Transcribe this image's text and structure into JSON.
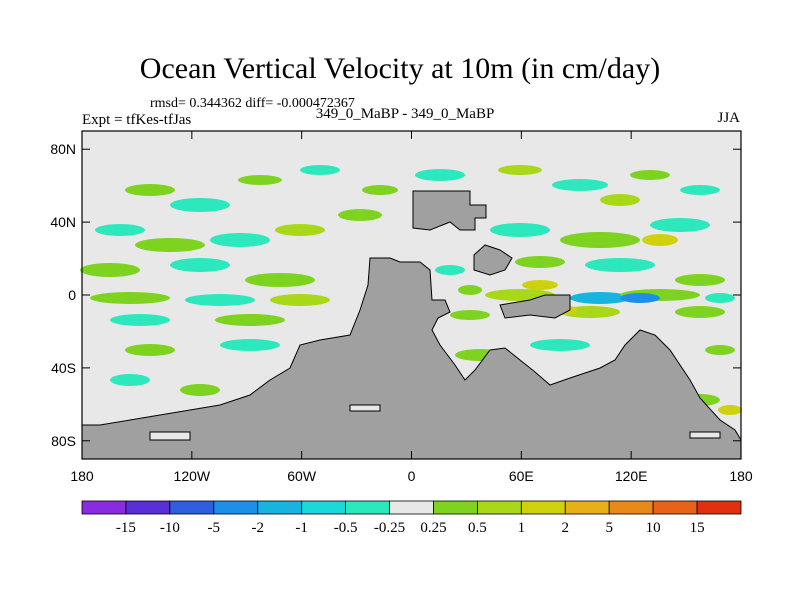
{
  "chart_data": {
    "type": "heatmap",
    "title": "Ocean Vertical Velocity at 10m (in cm/day)",
    "stats_label": "rmsd= 0.344362 diff= -0.000472367",
    "left_label": "Expt = tfKes-tfJas",
    "center_label": "349_0_MaBP - 349_0_MaBP",
    "right_label": "JJA",
    "x_ticks": [
      "180",
      "120W",
      "60W",
      "0",
      "60E",
      "120E",
      "180"
    ],
    "x_tick_values": [
      -180,
      -120,
      -60,
      0,
      60,
      120,
      180
    ],
    "y_ticks": [
      "80N",
      "40N",
      "0",
      "40S",
      "80S"
    ],
    "y_tick_values": [
      80,
      40,
      0,
      -40,
      -80
    ],
    "xlim": [
      -180,
      180
    ],
    "ylim": [
      -90,
      90
    ],
    "colorbar": {
      "levels": [
        "-15",
        "-10",
        "-5",
        "-2",
        "-1",
        "-0.5",
        "-0.25",
        "0.25",
        "0.5",
        "1",
        "2",
        "5",
        "10",
        "15"
      ],
      "colors": [
        "#8a2be2",
        "#5a2fd6",
        "#2f5fe0",
        "#1e8fe8",
        "#18b4e0",
        "#1ad8d8",
        "#2ee8bd",
        "#e8e8e8",
        "#7ed321",
        "#a8d818",
        "#cfd10c",
        "#e8b018",
        "#e88a1a",
        "#e8621a",
        "#e03010"
      ]
    },
    "land_color": "#a0a0a0",
    "ocean_background": "#e8e8e8"
  }
}
